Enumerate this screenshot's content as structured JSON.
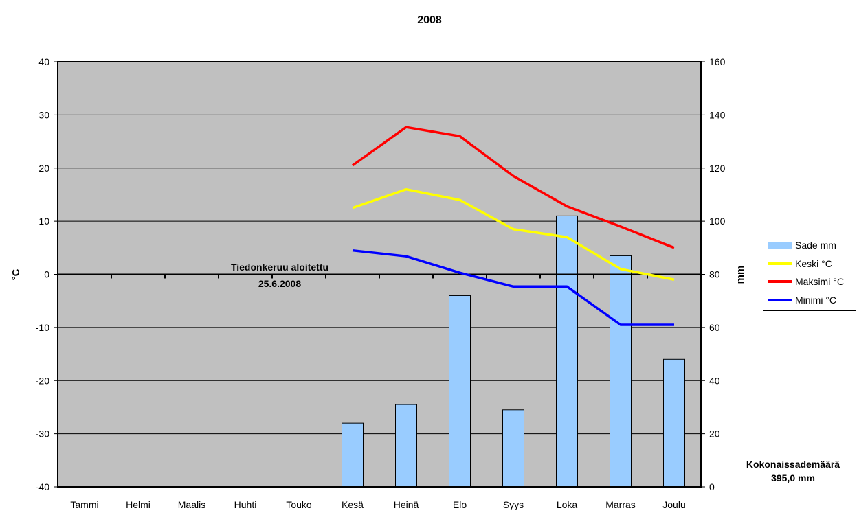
{
  "chart_data": {
    "type": "bar+line",
    "title": "2008",
    "categories": [
      "Tammi",
      "Helmi",
      "Maalis",
      "Huhti",
      "Touko",
      "Kesä",
      "Heinä",
      "Elo",
      "Syys",
      "Loka",
      "Marras",
      "Joulu"
    ],
    "y_left": {
      "label": "°C",
      "range": [
        -40,
        40
      ],
      "ticks": [
        40,
        30,
        20,
        10,
        0,
        -10,
        -20,
        -30,
        -40
      ]
    },
    "y_right": {
      "label": "mm",
      "range": [
        0,
        160
      ],
      "ticks": [
        160,
        140,
        120,
        100,
        80,
        60,
        40,
        20,
        0
      ]
    },
    "bars": {
      "name": "Sade mm",
      "axis": "right",
      "color": "#99CCFF",
      "values": [
        null,
        null,
        null,
        null,
        null,
        24,
        31,
        72,
        29,
        102,
        87,
        48
      ]
    },
    "lines": [
      {
        "name": "Keski °C",
        "axis": "left",
        "color": "#FFFF00",
        "values": [
          null,
          null,
          null,
          null,
          null,
          12.5,
          16,
          14,
          8.5,
          7,
          1,
          -1
        ]
      },
      {
        "name": "Maksimi °C",
        "axis": "left",
        "color": "#FF0000",
        "values": [
          null,
          null,
          null,
          null,
          null,
          20.5,
          27.7,
          26,
          18.5,
          12.8,
          9,
          5
        ]
      },
      {
        "name": "Minimi °C",
        "axis": "left",
        "color": "#0000FF",
        "values": [
          null,
          null,
          null,
          null,
          null,
          4.5,
          3.4,
          0.3,
          -2.3,
          -2.3,
          -9.5,
          -9.5
        ]
      }
    ],
    "plot_background": "#C0C0C0",
    "grid": true,
    "legend_position": "right",
    "annotation": {
      "line1": "Tiedonkeruu aloitettu",
      "line2": "25.6.2008"
    }
  },
  "total": {
    "label": "Kokonaissademäärä",
    "value": "395,0 mm"
  }
}
